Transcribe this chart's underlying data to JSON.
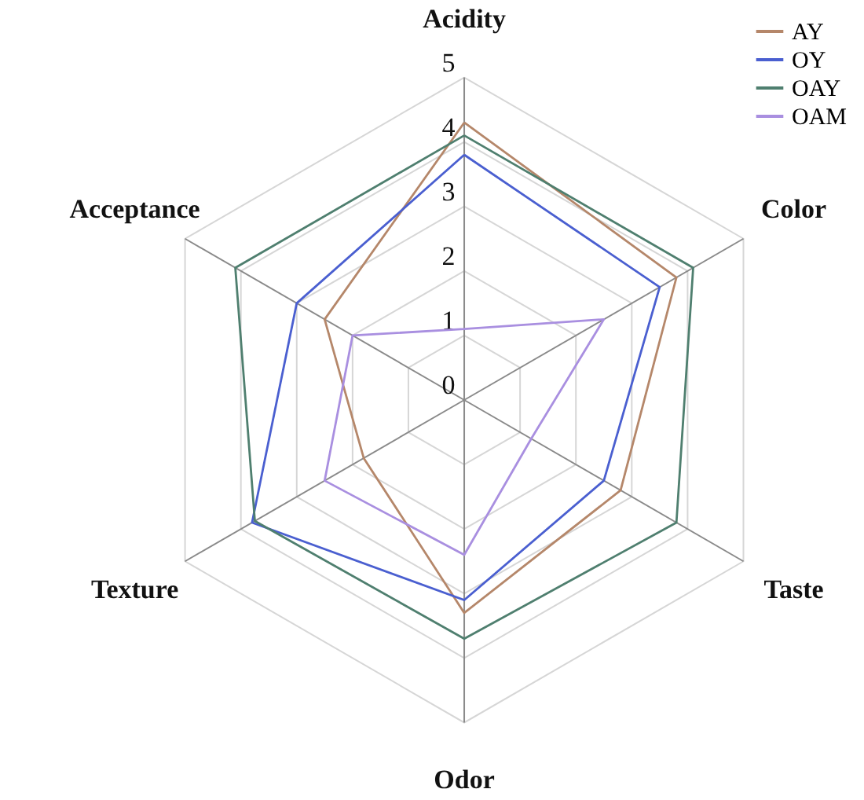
{
  "chart_data": {
    "type": "radar",
    "categories": [
      "Acidity",
      "Color",
      "Taste",
      "Odor",
      "Texture",
      "Acceptance"
    ],
    "series": [
      {
        "name": "AY",
        "color": "#b5876a",
        "values": [
          4.3,
          3.8,
          2.8,
          3.3,
          1.8,
          2.5
        ]
      },
      {
        "name": "OY",
        "color": "#4a5fd0",
        "values": [
          3.8,
          3.5,
          2.5,
          3.1,
          3.8,
          3.0
        ]
      },
      {
        "name": "OAY",
        "color": "#4f7f6f",
        "values": [
          4.1,
          4.1,
          3.8,
          3.7,
          3.75,
          4.1
        ]
      },
      {
        "name": "OAM",
        "color": "#a98fe0",
        "values": [
          1.1,
          2.5,
          1.2,
          2.4,
          2.5,
          2.0
        ]
      }
    ],
    "ylim": [
      0,
      5
    ],
    "yticks": [
      0,
      1,
      2,
      3,
      4,
      5
    ],
    "grid": true,
    "legend": "top right"
  }
}
